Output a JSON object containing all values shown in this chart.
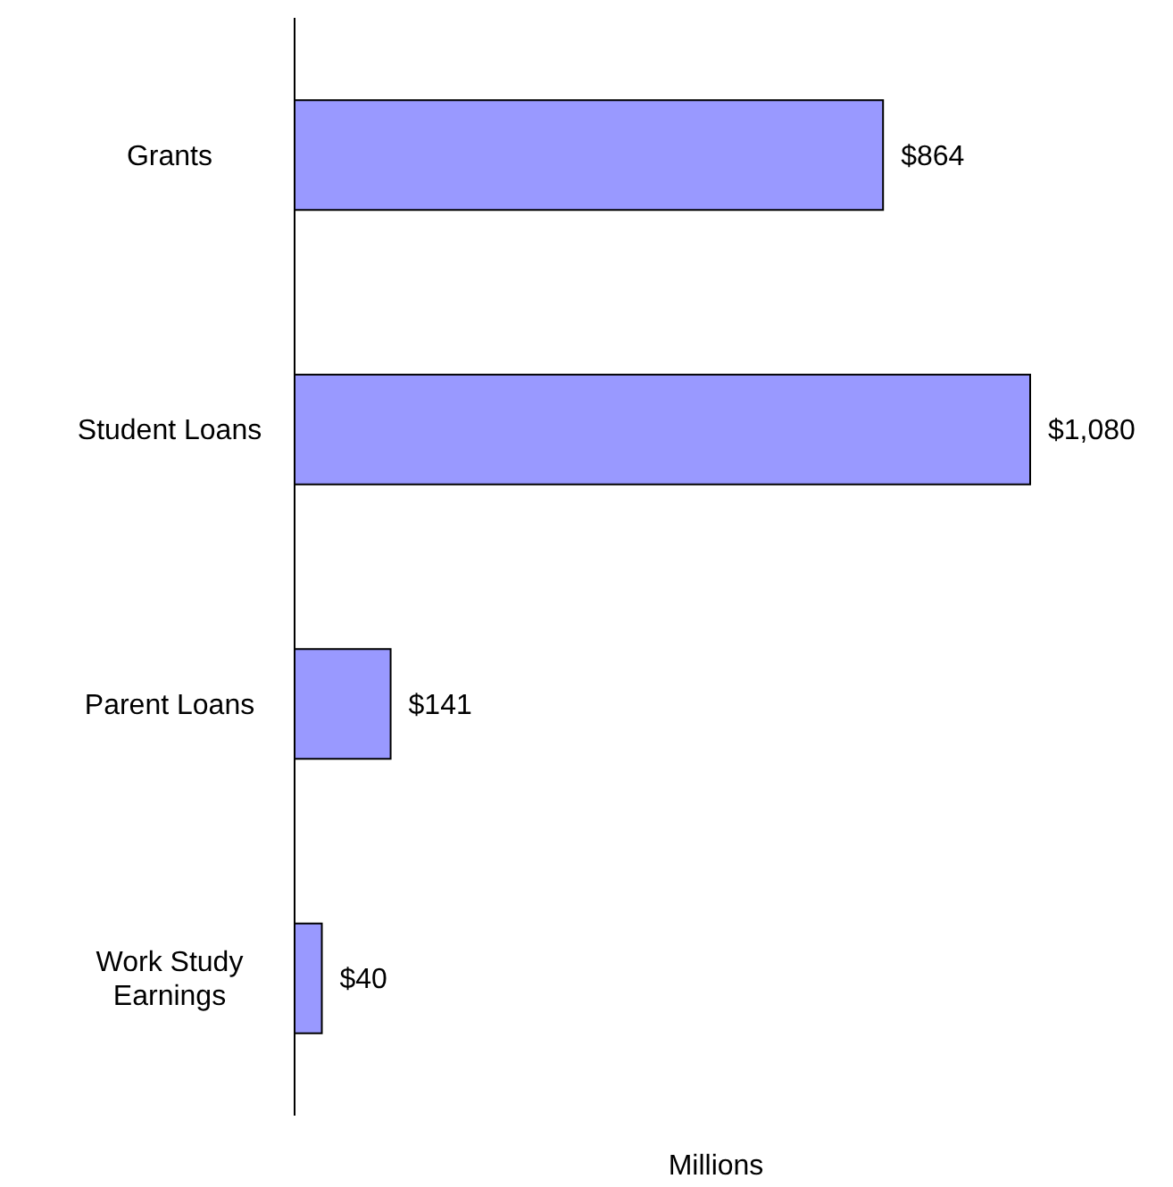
{
  "chart_data": {
    "type": "bar",
    "orientation": "horizontal",
    "xlabel": "Millions",
    "categories": [
      "Grants",
      "Student Loans",
      "Parent Loans",
      "Work Study Earnings"
    ],
    "values": [
      864,
      1080,
      141,
      40
    ],
    "value_labels": [
      "$864",
      "$1,080",
      "$141",
      "$40"
    ],
    "color": "#9999ff",
    "tick_labels": "y"
  }
}
